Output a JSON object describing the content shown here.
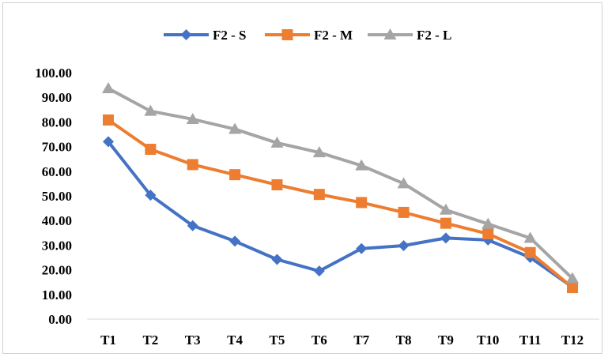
{
  "chart_data": {
    "type": "line",
    "categories": [
      "T1",
      "T2",
      "T3",
      "T4",
      "T5",
      "T6",
      "T7",
      "T8",
      "T9",
      "T10",
      "T11",
      "T12"
    ],
    "series": [
      {
        "name": "F2 - S",
        "color": "#4472C4",
        "marker": "diamond",
        "values": [
          72.0,
          50.3,
          37.9,
          31.6,
          24.2,
          19.5,
          28.6,
          29.8,
          32.9,
          32.1,
          25.0,
          13.0
        ]
      },
      {
        "name": "F2 - M",
        "color": "#ED7D31",
        "marker": "square",
        "values": [
          80.8,
          68.9,
          62.7,
          58.6,
          54.5,
          50.6,
          47.3,
          43.3,
          38.9,
          34.6,
          27.0,
          12.8
        ]
      },
      {
        "name": "F2 - L",
        "color": "#A5A5A5",
        "marker": "triangle",
        "values": [
          93.6,
          84.4,
          81.1,
          77.1,
          71.5,
          67.6,
          62.3,
          55.0,
          44.3,
          38.6,
          32.9,
          16.5
        ]
      }
    ],
    "y_ticks": [
      "0.00",
      "10.00",
      "20.00",
      "30.00",
      "40.00",
      "50.00",
      "60.00",
      "70.00",
      "80.00",
      "90.00",
      "100.00"
    ],
    "ylim": [
      0,
      100
    ],
    "grid": false,
    "legend_position": "top"
  }
}
